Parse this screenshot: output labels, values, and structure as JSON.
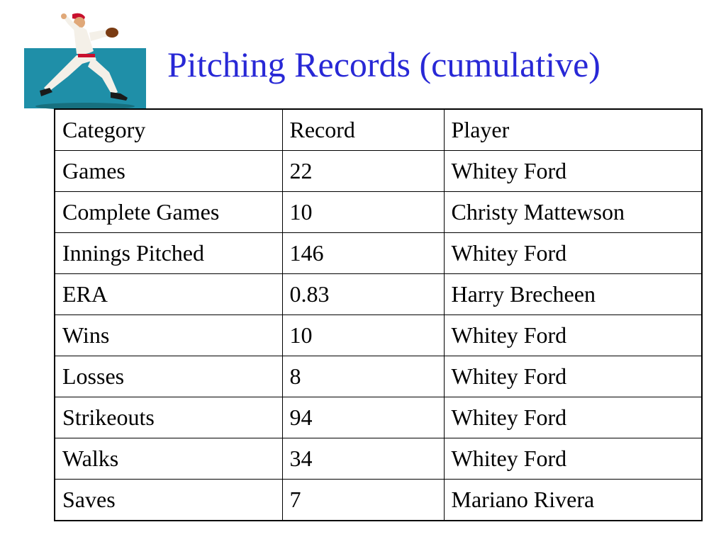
{
  "slide": {
    "title": "Pitching Records (cumulative)",
    "clipart_icon": "baseball-pitcher-icon",
    "title_color": "#2828d6",
    "clipart_bg_color": "#1f8fa8"
  },
  "table": {
    "headers": [
      "Category",
      "Record",
      "Player"
    ],
    "rows": [
      [
        "Games",
        "22",
        "Whitey Ford"
      ],
      [
        "Complete Games",
        "10",
        "Christy Mattewson"
      ],
      [
        "Innings Pitched",
        "146",
        "Whitey Ford"
      ],
      [
        "ERA",
        "0.83",
        "Harry Brecheen"
      ],
      [
        "Wins",
        "10",
        "Whitey Ford"
      ],
      [
        "Losses",
        "8",
        "Whitey Ford"
      ],
      [
        "Strikeouts",
        "94",
        "Whitey Ford"
      ],
      [
        "Walks",
        "34",
        "Whitey Ford"
      ],
      [
        "Saves",
        "7",
        "Mariano Rivera"
      ]
    ]
  }
}
